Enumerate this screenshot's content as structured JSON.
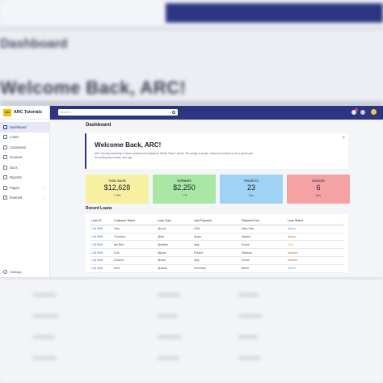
{
  "colors": {
    "nav": "#2c3582",
    "total_sales_card": "#f7f0a0",
    "expenses_card": "#a8e8a4",
    "projects_card": "#9fd3f5",
    "invoices_card": "#f4a2a4"
  },
  "backdrop": {
    "title": "Dashboard",
    "welcome": "Welcome Back, ARC!"
  },
  "sidebar": {
    "logo_text": "ARC",
    "brand": "ARC Tutorials",
    "items": [
      {
        "label": "Dashboard",
        "icon": "home-icon"
      },
      {
        "label": "Loans",
        "icon": "document-icon"
      },
      {
        "label": "Customers",
        "icon": "users-icon"
      },
      {
        "label": "Invoices",
        "icon": "invoice-icon"
      },
      {
        "label": "Docs",
        "icon": "folder-icon"
      },
      {
        "label": "Reports",
        "icon": "chart-icon"
      },
      {
        "label": "Pages",
        "icon": "pages-icon"
      },
      {
        "label": "External",
        "icon": "external-icon"
      }
    ],
    "settings": "Settings"
  },
  "topnav": {
    "search_placeholder": "Search..."
  },
  "main": {
    "title": "Dashboard",
    "welcome": {
      "title": "Welcome Back, ARC!",
      "text": "ARC Tutorials Bootstrap 5 admin dashboard template for MEAN Stack Tutorial. The design is simple, clean and minimal so it's a great base for building any modern web app.",
      "close": "×"
    },
    "cards": [
      {
        "label": "TOTAL SALES",
        "value": "$12,628",
        "sub": "+ 15%"
      },
      {
        "label": "EXPENSES",
        "value": "$2,250",
        "sub": "+ 7%"
      },
      {
        "label": "PROJECTS",
        "value": "23",
        "sub": "Due"
      },
      {
        "label": "INVOICES",
        "value": "6",
        "sub": "New"
      }
    ],
    "recent_loans": {
      "title": "Recent Loans",
      "headers": [
        "Loan ID",
        "Customer Name",
        "Loan Type",
        "Last Payment",
        "Payment Due",
        "Loan Status"
      ],
      "rows": [
        [
          "L16 NEA",
          "Otto",
          "@mdo",
          "USA",
          "New York",
          "Active"
        ],
        [
          "L16 NEA",
          "Thornton",
          "@fat",
          "Spain",
          "Madrid",
          "Active"
        ],
        [
          "L16 NEA",
          "the Bird",
          "@twitter",
          "Italy",
          "Rome",
          "Due"
        ],
        [
          "L16 NEA",
          "Doe",
          "@jdoe",
          "Poland",
          "Warsaw",
          "Inactive"
        ],
        [
          "L16 NEA",
          "Dolores",
          "@dolo",
          "Italy",
          "Rome",
          "Inactive"
        ],
        [
          "L16 NEA",
          "Kuhl",
          "@ckuhl",
          "Germany",
          "Berlin",
          "Active"
        ]
      ]
    }
  }
}
